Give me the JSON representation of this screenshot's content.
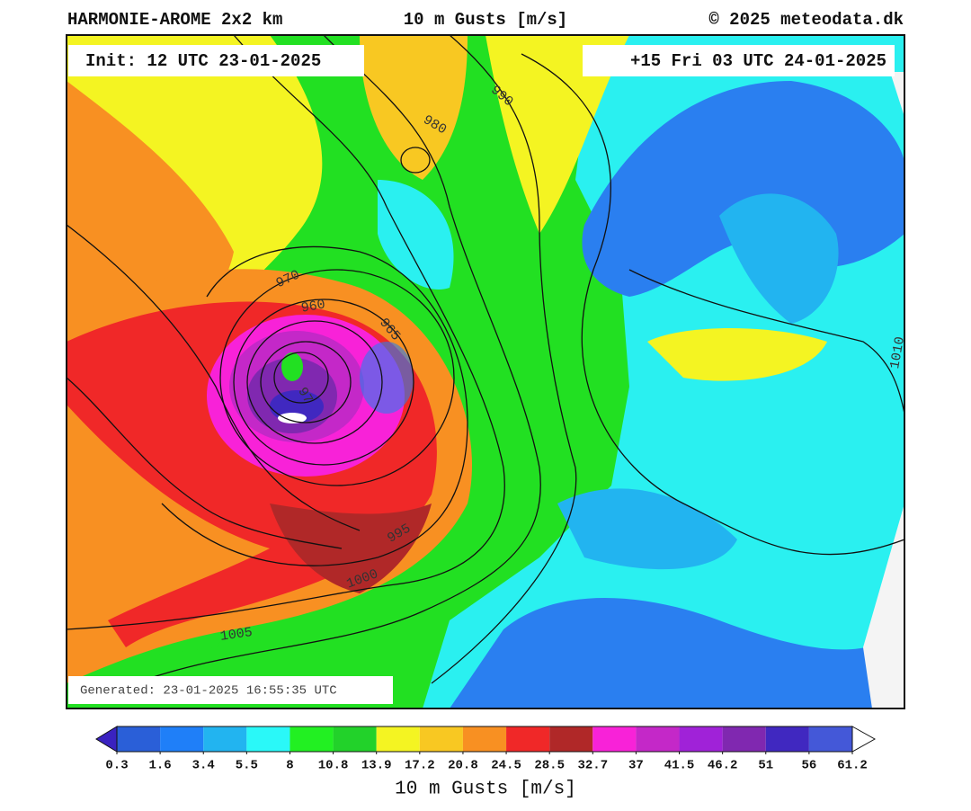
{
  "header": {
    "model": "HARMONIE-AROME 2x2 km",
    "parameter": "10 m Gusts [m/s]",
    "copyright": "© 2025 meteodata.dk"
  },
  "map": {
    "init": "Init: 12 UTC 23-01-2025",
    "valid": "+15 Fri 03 UTC 24-01-2025",
    "generated": "Generated: 23-01-2025 16:55:35 UTC",
    "isobar_labels": [
      "990",
      "980",
      "970",
      "960",
      "965",
      "97",
      "995",
      "1000",
      "1005",
      "1010"
    ]
  },
  "colorbar": {
    "label": "10 m Gusts [m/s]",
    "ticks": [
      0.3,
      1.6,
      3.4,
      5.5,
      8,
      10.8,
      13.9,
      17.2,
      20.8,
      24.5,
      28.5,
      32.7,
      37,
      41.5,
      46.2,
      51,
      56,
      61.2
    ],
    "colors": [
      "#2a5fd8",
      "#1f7ff8",
      "#22b4f0",
      "#2af8f8",
      "#22f022",
      "#22d22a",
      "#f4f422",
      "#f8c822",
      "#f89022",
      "#f02828",
      "#b02828",
      "#f822d8",
      "#c428c8",
      "#a022d8",
      "#8028b0",
      "#4028c0",
      "#4458d8"
    ],
    "under_color": "#3a22c0",
    "over_color": "#ffffff"
  }
}
